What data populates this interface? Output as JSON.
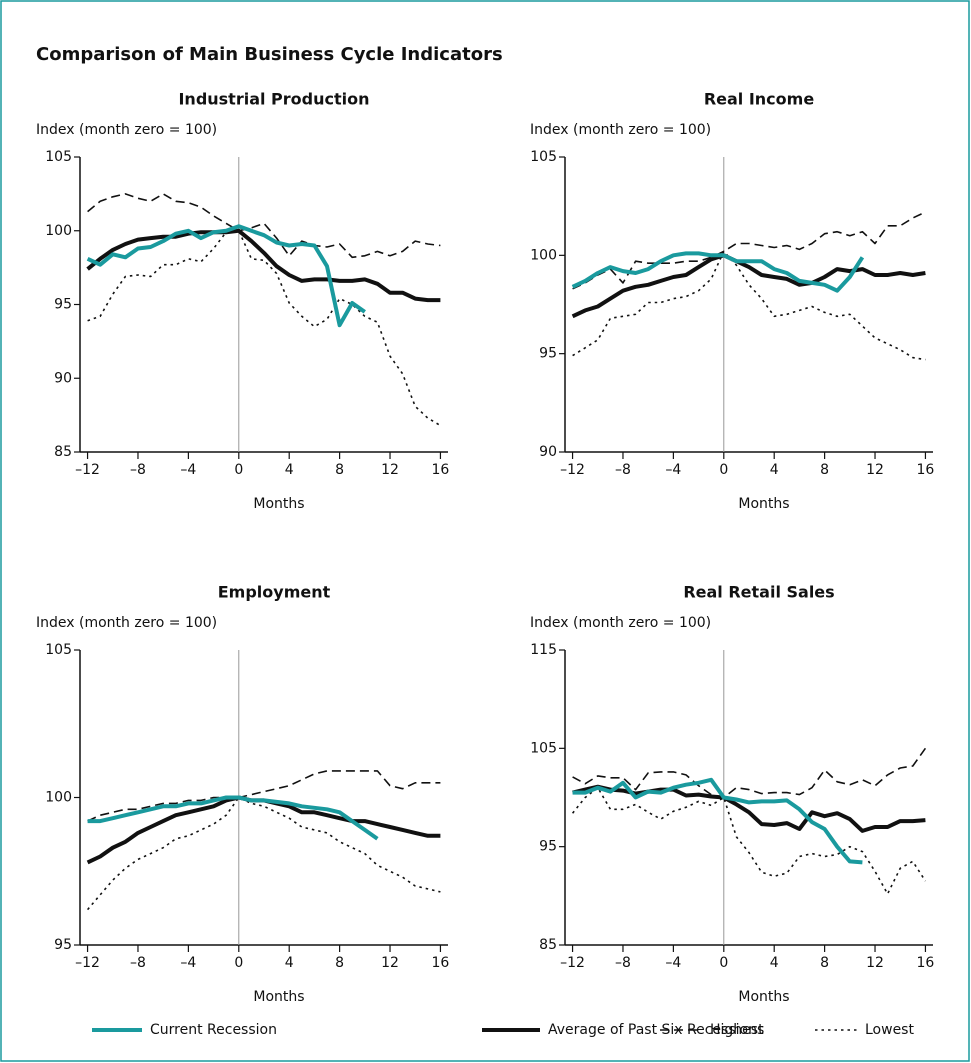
{
  "title": "Comparison of Main Business Cycle Indicators",
  "legend": [
    {
      "name": "Current Recession",
      "color": "#1a9a9e",
      "dash": "solid"
    },
    {
      "name": "Average of Past Six Recessions",
      "color": "#111111",
      "dash": "solid"
    },
    {
      "name": "Highest",
      "color": "#111111",
      "dash": "dashed"
    },
    {
      "name": "Lowest",
      "color": "#111111",
      "dash": "dotted"
    }
  ],
  "chart_data": [
    {
      "type": "line",
      "title": "Industrial Production",
      "ylabel": "Index (month zero = 100)",
      "xlabel": "Months",
      "x": [
        -12,
        -11,
        -10,
        -9,
        -8,
        -7,
        -6,
        -5,
        -4,
        -3,
        -2,
        -1,
        0,
        1,
        2,
        3,
        4,
        5,
        6,
        7,
        8,
        9,
        10,
        11,
        12,
        13,
        14,
        15,
        16
      ],
      "xlim": [
        -12.6,
        16.6
      ],
      "xticks": [
        {
          "value": -12,
          "label": "–12"
        },
        {
          "value": -8,
          "label": "–8"
        },
        {
          "value": -4,
          "label": "–4"
        },
        0,
        4,
        8,
        12,
        16
      ],
      "ylim": [
        85,
        105
      ],
      "yticks": [
        85,
        90,
        95,
        100,
        105
      ],
      "series": [
        {
          "values": [
            98.1,
            97.7,
            98.4,
            98.2,
            98.8,
            98.9,
            99.3,
            99.8,
            100,
            99.5,
            99.9,
            100,
            100.3,
            100,
            99.7,
            99.2,
            99,
            99.1,
            99,
            97.6,
            93.6,
            95.1,
            94.5,
            null,
            null,
            null,
            null,
            null,
            null
          ]
        },
        {
          "values": [
            97.4,
            98.1,
            98.7,
            99.1,
            99.4,
            99.5,
            99.6,
            99.6,
            99.8,
            99.9,
            99.9,
            99.9,
            100,
            99.3,
            98.5,
            97.6,
            97,
            96.6,
            96.7,
            96.7,
            96.6,
            96.6,
            96.7,
            96.4,
            95.8,
            95.8,
            95.4,
            95.3,
            95.3
          ]
        },
        {
          "values": [
            101.3,
            102,
            102.3,
            102.5,
            102.2,
            102,
            102.5,
            102,
            101.9,
            101.6,
            101,
            100.5,
            100,
            100.2,
            100.5,
            99.5,
            98.3,
            99.3,
            99,
            98.9,
            99.1,
            98.2,
            98.3,
            98.6,
            98.3,
            98.6,
            99.3,
            99.1,
            99
          ]
        },
        {
          "values": [
            93.9,
            94.2,
            95.7,
            96.9,
            97,
            96.9,
            97.7,
            97.7,
            98.1,
            97.9,
            98.8,
            99.9,
            100,
            98.1,
            98,
            97.1,
            95.1,
            94.2,
            93.5,
            94,
            95.4,
            95,
            94.2,
            93.8,
            91.5,
            90.3,
            88.1,
            87.3,
            86.8
          ]
        }
      ]
    },
    {
      "type": "line",
      "title": "Real Income",
      "ylabel": "Index (month zero = 100)",
      "xlabel": "Months",
      "x": [
        -12,
        -11,
        -10,
        -9,
        -8,
        -7,
        -6,
        -5,
        -4,
        -3,
        -2,
        -1,
        0,
        1,
        2,
        3,
        4,
        5,
        6,
        7,
        8,
        9,
        10,
        11,
        12,
        13,
        14,
        15,
        16
      ],
      "xlim": [
        -12.6,
        16.6
      ],
      "xticks": [
        {
          "value": -12,
          "label": "–12"
        },
        {
          "value": -8,
          "label": "–8"
        },
        {
          "value": -4,
          "label": "–4"
        },
        0,
        4,
        8,
        12,
        16
      ],
      "ylim": [
        90,
        105
      ],
      "yticks": [
        90,
        95,
        100,
        105
      ],
      "series": [
        {
          "values": [
            98.4,
            98.7,
            99.1,
            99.4,
            99.2,
            99.1,
            99.3,
            99.7,
            100,
            100.1,
            100.1,
            100,
            100,
            99.7,
            99.7,
            99.7,
            99.3,
            99.1,
            98.7,
            98.6,
            98.5,
            98.2,
            98.9,
            99.9,
            null,
            null,
            null,
            null,
            null
          ]
        },
        {
          "values": [
            96.9,
            97.2,
            97.4,
            97.8,
            98.2,
            98.4,
            98.5,
            98.7,
            98.9,
            99,
            99.4,
            99.8,
            100,
            99.7,
            99.4,
            99,
            98.9,
            98.8,
            98.5,
            98.6,
            98.9,
            99.3,
            99.2,
            99.3,
            99,
            99,
            99.1,
            99,
            99.1
          ]
        },
        {
          "values": [
            98.3,
            98.6,
            99,
            99.3,
            98.6,
            99.7,
            99.6,
            99.6,
            99.6,
            99.7,
            99.7,
            99.9,
            100.2,
            100.6,
            100.6,
            100.5,
            100.4,
            100.5,
            100.3,
            100.6,
            101.1,
            101.2,
            101,
            101.2,
            100.6,
            101.5,
            101.5,
            101.9,
            102.2
          ]
        },
        {
          "values": [
            94.9,
            95.3,
            95.7,
            96.8,
            96.9,
            97,
            97.6,
            97.6,
            97.8,
            97.9,
            98.2,
            98.8,
            100.2,
            99.5,
            98.5,
            97.8,
            96.9,
            97,
            97.2,
            97.4,
            97.1,
            96.9,
            97,
            96.4,
            95.8,
            95.5,
            95.2,
            94.8,
            94.7
          ]
        }
      ]
    },
    {
      "type": "line",
      "title": "Employment",
      "ylabel": "Index (month zero = 100)",
      "xlabel": "Months",
      "x": [
        -12,
        -11,
        -10,
        -9,
        -8,
        -7,
        -6,
        -5,
        -4,
        -3,
        -2,
        -1,
        0,
        1,
        2,
        3,
        4,
        5,
        6,
        7,
        8,
        9,
        10,
        11,
        12,
        13,
        14,
        15,
        16
      ],
      "xlim": [
        -12.6,
        16.6
      ],
      "xticks": [
        {
          "value": -12,
          "label": "–12"
        },
        {
          "value": -8,
          "label": "–8"
        },
        {
          "value": -4,
          "label": "–4"
        },
        0,
        4,
        8,
        12,
        16
      ],
      "ylim": [
        95,
        105
      ],
      "yticks": [
        95,
        100,
        105
      ],
      "series": [
        {
          "values": [
            99.2,
            99.2,
            99.3,
            99.4,
            99.5,
            99.6,
            99.7,
            99.7,
            99.8,
            99.8,
            99.9,
            100,
            100,
            99.9,
            99.9,
            99.85,
            99.8,
            99.7,
            99.65,
            99.6,
            99.5,
            99.2,
            98.9,
            98.6,
            null,
            null,
            null,
            null,
            null
          ]
        },
        {
          "values": [
            97.8,
            98,
            98.3,
            98.5,
            98.8,
            99,
            99.2,
            99.4,
            99.5,
            99.6,
            99.7,
            99.9,
            100,
            99.9,
            99.9,
            99.8,
            99.7,
            99.5,
            99.5,
            99.4,
            99.3,
            99.2,
            99.2,
            99.1,
            99,
            98.9,
            98.8,
            98.7,
            98.7
          ]
        },
        {
          "values": [
            99.2,
            99.4,
            99.5,
            99.6,
            99.6,
            99.7,
            99.8,
            99.8,
            99.9,
            99.9,
            100,
            100,
            100,
            100.1,
            100.2,
            100.3,
            100.4,
            100.6,
            100.8,
            100.9,
            100.9,
            100.9,
            100.9,
            100.9,
            100.4,
            100.3,
            100.5,
            100.5,
            100.5
          ]
        },
        {
          "values": [
            96.2,
            96.7,
            97.2,
            97.6,
            97.9,
            98.1,
            98.3,
            98.6,
            98.7,
            98.9,
            99.1,
            99.4,
            100,
            99.8,
            99.7,
            99.5,
            99.3,
            99,
            98.9,
            98.8,
            98.5,
            98.3,
            98.1,
            97.7,
            97.5,
            97.3,
            97,
            96.9,
            96.8
          ]
        }
      ]
    },
    {
      "type": "line",
      "title": "Real Retail Sales",
      "ylabel": "Index (month zero = 100)",
      "xlabel": "Months",
      "x": [
        -12,
        -11,
        -10,
        -9,
        -8,
        -7,
        -6,
        -5,
        -4,
        -3,
        -2,
        -1,
        0,
        1,
        2,
        3,
        4,
        5,
        6,
        7,
        8,
        9,
        10,
        11,
        12,
        13,
        14,
        15,
        16
      ],
      "xlim": [
        -12.6,
        16.6
      ],
      "xticks": [
        {
          "value": -12,
          "label": "–12"
        },
        {
          "value": -8,
          "label": "–8"
        },
        {
          "value": -4,
          "label": "–4"
        },
        0,
        4,
        8,
        12,
        16
      ],
      "ylim": [
        85,
        115
      ],
      "yticks": [
        85,
        95,
        105,
        115
      ],
      "series": [
        {
          "values": [
            100.5,
            100.5,
            101,
            100.6,
            101.5,
            100,
            100.6,
            100.5,
            101,
            101.3,
            101.5,
            101.8,
            100,
            99.8,
            99.5,
            99.6,
            99.6,
            99.7,
            98.8,
            97.5,
            96.8,
            95,
            93.5,
            93.4,
            null,
            null,
            null,
            null,
            null
          ]
        },
        {
          "values": [
            100.5,
            100.8,
            101.1,
            100.8,
            100.7,
            100.4,
            100.6,
            100.8,
            100.8,
            100.2,
            100.3,
            100.1,
            100,
            99.3,
            98.5,
            97.3,
            97.2,
            97.4,
            96.8,
            98.5,
            98.1,
            98.4,
            97.8,
            96.6,
            97,
            97,
            97.6,
            97.6,
            97.7
          ]
        },
        {
          "values": [
            102.1,
            101.4,
            102.2,
            102,
            102,
            100.8,
            102.5,
            102.6,
            102.6,
            102.3,
            101.2,
            100.3,
            100,
            101,
            100.8,
            100.4,
            100.5,
            100.5,
            100.3,
            101,
            102.8,
            101.6,
            101.3,
            101.8,
            101.2,
            102.3,
            103,
            103.2,
            105
          ]
        },
        {
          "values": [
            98.4,
            100,
            101,
            98.8,
            98.8,
            99.3,
            98.5,
            97.8,
            98.6,
            99,
            99.6,
            99.2,
            100,
            96,
            94.4,
            92.4,
            92,
            92.3,
            94,
            94.3,
            94,
            94.2,
            95,
            94.5,
            92.5,
            90.2,
            92.8,
            93.5,
            91.5
          ]
        }
      ]
    }
  ]
}
